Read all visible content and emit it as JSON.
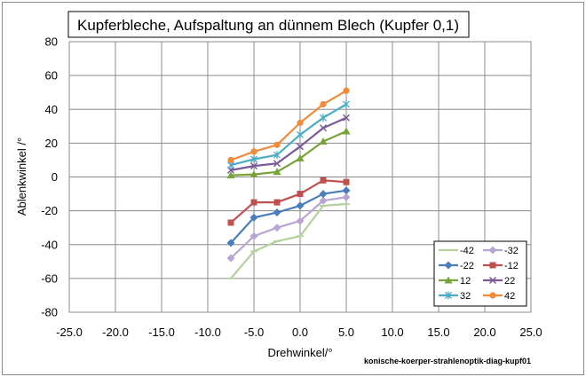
{
  "chart_data": {
    "type": "line",
    "title": "Kupferbleche, Aufspaltung an dünnem Blech (Kupfer 0,1)",
    "xlabel": "Drehwinkel/°",
    "ylabel": "Ablenkwinkel /°",
    "xlim": [
      -25,
      25
    ],
    "ylim": [
      -80,
      80
    ],
    "xticks": [
      -25,
      -20,
      -15,
      -10,
      -5,
      0,
      5,
      10,
      15,
      20,
      25
    ],
    "xtick_labels": [
      "-25.0",
      "-20.0",
      "-15.0",
      "-10.0",
      "-5.0",
      "0.0",
      "5.0",
      "10.0",
      "15.0",
      "20.0",
      "25.0"
    ],
    "yticks": [
      -80,
      -60,
      -40,
      -20,
      0,
      20,
      40,
      60,
      80
    ],
    "ytick_labels": [
      "-80",
      "-60",
      "-40",
      "-20",
      "0",
      "20",
      "40",
      "60",
      "80"
    ],
    "grid": true,
    "legend_position": "bottom-right",
    "x": [
      -7.5,
      -5,
      -2.5,
      0,
      2.5,
      5
    ],
    "series": [
      {
        "name": "-42",
        "color": "#b5d19b",
        "marker": "dash",
        "values": [
          -60,
          -44,
          -38,
          -35,
          -17,
          -16
        ]
      },
      {
        "name": "-32",
        "color": "#b9a5d3",
        "marker": "diamond",
        "values": [
          -48,
          -35,
          -30,
          -26,
          -14,
          -12
        ]
      },
      {
        "name": "-22",
        "color": "#4a7ebb",
        "marker": "diamond",
        "values": [
          -39,
          -24,
          -21,
          -17,
          -10,
          -8
        ]
      },
      {
        "name": "-12",
        "color": "#c0504d",
        "marker": "square",
        "values": [
          -27,
          -15,
          -15,
          -10,
          -2,
          -3
        ]
      },
      {
        "name": "12",
        "color": "#77a33a",
        "marker": "triangle",
        "values": [
          1,
          1.5,
          3,
          11,
          21,
          27
        ]
      },
      {
        "name": "22",
        "color": "#7b5a98",
        "marker": "x",
        "values": [
          4,
          6.5,
          8,
          18,
          29,
          35
        ]
      },
      {
        "name": "32",
        "color": "#4bacc6",
        "marker": "star",
        "values": [
          7,
          10.5,
          13,
          25,
          35,
          43
        ]
      },
      {
        "name": "42",
        "color": "#f08b3a",
        "marker": "circle",
        "values": [
          10,
          15,
          19,
          32,
          43,
          51
        ]
      }
    ]
  },
  "caption": "konische-koerper-strahlenoptik-diag-kupf01"
}
